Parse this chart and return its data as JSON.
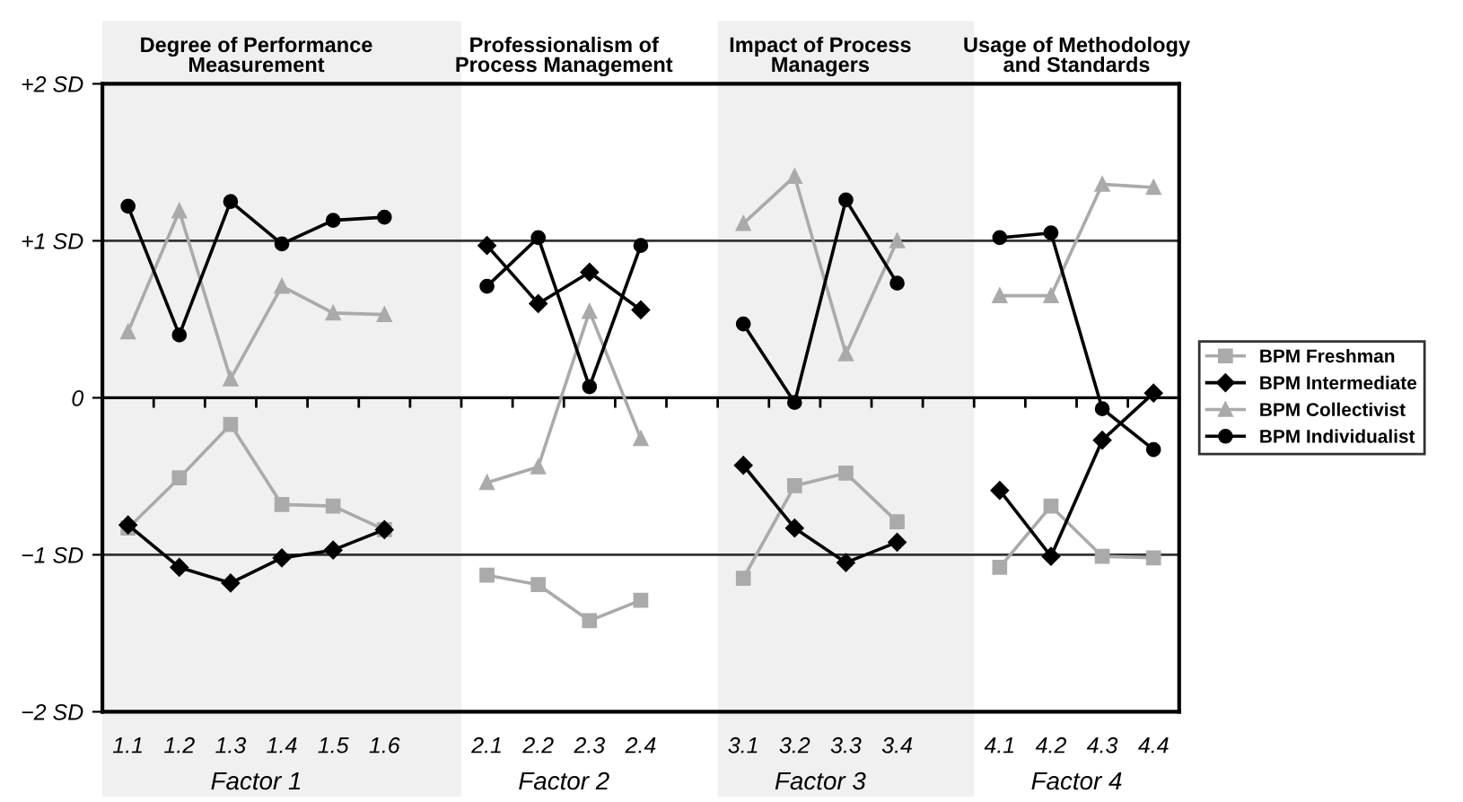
{
  "chart_data": {
    "type": "line",
    "categories": [
      "1.1",
      "1.2",
      "1.3",
      "1.4",
      "1.5",
      "1.6",
      null,
      "2.1",
      "2.2",
      "2.3",
      "2.4",
      null,
      "3.1",
      "3.2",
      "3.3",
      "3.4",
      null,
      "4.1",
      "4.2",
      "4.3",
      "4.4"
    ],
    "series": [
      {
        "name": "BPM Freshman",
        "color": "#aaaaaa",
        "marker": "square",
        "values": [
          -0.83,
          -0.51,
          -0.17,
          -0.68,
          -0.69,
          -0.84,
          null,
          -1.13,
          -1.19,
          -1.42,
          -1.29,
          null,
          -1.15,
          -0.56,
          -0.48,
          -0.79,
          null,
          -1.08,
          -0.69,
          -1.01,
          -1.02
        ]
      },
      {
        "name": "BPM Intermediate",
        "color": "#000000",
        "marker": "diamond",
        "values": [
          -0.81,
          -1.08,
          -1.18,
          -1.02,
          -0.97,
          -0.84,
          null,
          0.97,
          0.6,
          0.8,
          0.56,
          null,
          -0.43,
          -0.83,
          -1.05,
          -0.92,
          null,
          -0.59,
          -1.01,
          -0.27,
          0.03
        ]
      },
      {
        "name": "BPM Collectivist",
        "color": "#aaaaaa",
        "marker": "triangle",
        "values": [
          0.42,
          1.19,
          0.12,
          0.71,
          0.54,
          0.53,
          null,
          -0.54,
          -0.44,
          0.55,
          -0.26,
          null,
          1.11,
          1.41,
          0.28,
          1.0,
          null,
          0.65,
          0.65,
          1.36,
          1.34
        ]
      },
      {
        "name": "BPM Individualist",
        "color": "#000000",
        "marker": "circle",
        "values": [
          1.22,
          0.4,
          1.25,
          0.98,
          1.13,
          1.15,
          null,
          0.71,
          1.02,
          0.07,
          0.97,
          null,
          0.47,
          -0.03,
          1.26,
          0.73,
          null,
          1.02,
          1.05,
          -0.07,
          -0.33
        ]
      }
    ],
    "annotations": [
      "Degree of Performance\nMeasurement",
      "Professionalism of\nProcess Management",
      "Impact of Process\nManagers",
      "Usage of Methodology\nand Standards",
      "Factor 1",
      "Factor 2",
      "Factor 3",
      "Factor 4"
    ],
    "ylim": [
      -2,
      2
    ],
    "yticks": [
      {
        "value": 2,
        "label": "+2 SD"
      },
      {
        "value": 1,
        "label": "+1 SD"
      },
      {
        "value": 0,
        "label": "0"
      },
      {
        "value": -1,
        "label": "−1 SD"
      },
      {
        "value": -2,
        "label": "−2 SD"
      }
    ],
    "ref_lines": [
      {
        "axis": "y",
        "value": 0,
        "label": null
      }
    ],
    "grid": "y",
    "legend": "right",
    "line_style": "solid"
  }
}
